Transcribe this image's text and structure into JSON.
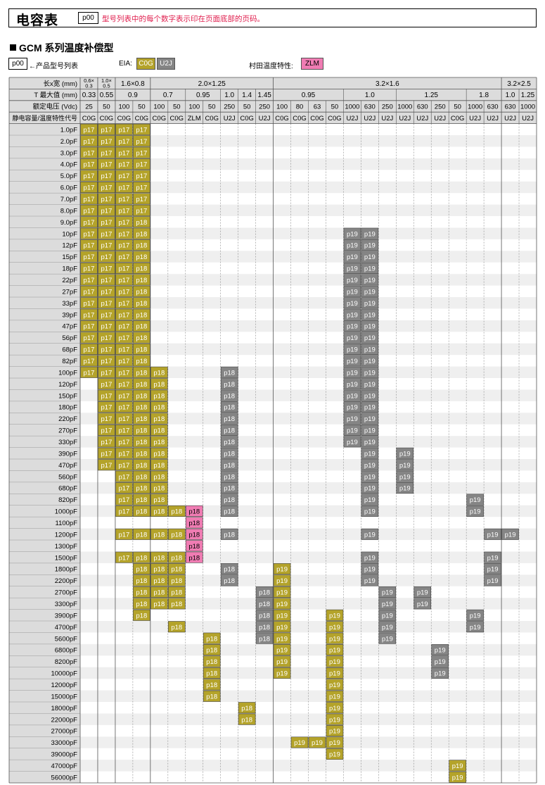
{
  "header": {
    "title": "电容表",
    "page_ref": "p00",
    "note": "型号列表中的每个数字表示印在页面底部的页码。"
  },
  "series_title": "GCM 系列温度补偿型",
  "legend": {
    "page_box": "p00",
    "page_desc": "←产品型号列表",
    "eia_label": "EIA:",
    "eia_codes": [
      "C0G",
      "U2J"
    ],
    "murata_label": "村田温度特性:",
    "murata_code": "ZLM"
  },
  "colors": {
    "C0G": "#b4a32a",
    "U2J": "#858585",
    "ZLM": "#f07cb3"
  },
  "table": {
    "row_headers": [
      "长x宽 (mm)",
      "T 最大值 (mm)",
      "额定电压 (Vdc)",
      "静电容量/温度特性代号"
    ],
    "sizes": [
      {
        "label": "0.6×0.3",
        "span": 1
      },
      {
        "label": "1.0×0.5",
        "span": 1
      },
      {
        "label": "1.6×0.8",
        "span": 2
      },
      {
        "label": "2.0×1.25",
        "span": 7
      },
      {
        "label": "3.2×1.6",
        "span": 13
      },
      {
        "label": "3.2×2.5",
        "span": 2
      }
    ],
    "thickness": [
      {
        "label": "0.33",
        "span": 1
      },
      {
        "label": "0.55",
        "span": 1
      },
      {
        "label": "0.9",
        "span": 2
      },
      {
        "label": "0.7",
        "span": 2
      },
      {
        "label": "0.95",
        "span": 2
      },
      {
        "label": "1.0",
        "span": 1
      },
      {
        "label": "1.4",
        "span": 1
      },
      {
        "label": "1.45",
        "span": 1
      },
      {
        "label": "0.95",
        "span": 4
      },
      {
        "label": "1.0",
        "span": 3
      },
      {
        "label": "1.25",
        "span": 4
      },
      {
        "label": "1.8",
        "span": 2
      },
      {
        "label": "1.0",
        "span": 1
      },
      {
        "label": "1.25",
        "span": 1
      }
    ],
    "voltages": [
      "25",
      "50",
      "100",
      "50",
      "100",
      "50",
      "100",
      "50",
      "250",
      "50",
      "250",
      "100",
      "80",
      "63",
      "50",
      "1000",
      "630",
      "250",
      "1000",
      "630",
      "250",
      "50",
      "1000",
      "630",
      "630",
      "1000"
    ],
    "tc": [
      "C0G",
      "C0G",
      "C0G",
      "C0G",
      "C0G",
      "C0G",
      "ZLM",
      "C0G",
      "U2J",
      "C0G",
      "U2J",
      "C0G",
      "C0G",
      "C0G",
      "C0G",
      "U2J",
      "U2J",
      "U2J",
      "U2J",
      "U2J",
      "U2J",
      "C0G",
      "U2J",
      "U2J",
      "U2J",
      "U2J"
    ],
    "capacitances": [
      "1.0pF",
      "2.0pF",
      "3.0pF",
      "4.0pF",
      "5.0pF",
      "6.0pF",
      "7.0pF",
      "8.0pF",
      "9.0pF",
      "10pF",
      "12pF",
      "15pF",
      "18pF",
      "22pF",
      "27pF",
      "33pF",
      "39pF",
      "47pF",
      "56pF",
      "68pF",
      "82pF",
      "100pF",
      "120pF",
      "150pF",
      "180pF",
      "220pF",
      "270pF",
      "330pF",
      "390pF",
      "470pF",
      "560pF",
      "680pF",
      "820pF",
      "1000pF",
      "1100pF",
      "1200pF",
      "1300pF",
      "1500pF",
      "1800pF",
      "2200pF",
      "2700pF",
      "3300pF",
      "3900pF",
      "4700pF",
      "5600pF",
      "6800pF",
      "8200pF",
      "10000pF",
      "12000pF",
      "15000pF",
      "18000pF",
      "22000pF",
      "27000pF",
      "33000pF",
      "39000pF",
      "47000pF",
      "56000pF"
    ],
    "cells": [
      [
        0,
        0,
        "p17"
      ],
      [
        1,
        0,
        "p17"
      ],
      [
        2,
        0,
        "p17"
      ],
      [
        3,
        0,
        "p17"
      ],
      [
        4,
        0,
        "p17"
      ],
      [
        5,
        0,
        "p17"
      ],
      [
        6,
        0,
        "p17"
      ],
      [
        7,
        0,
        "p17"
      ],
      [
        8,
        0,
        "p17"
      ],
      [
        9,
        0,
        "p17"
      ],
      [
        10,
        0,
        "p17"
      ],
      [
        11,
        0,
        "p17"
      ],
      [
        12,
        0,
        "p17"
      ],
      [
        13,
        0,
        "p17"
      ],
      [
        14,
        0,
        "p17"
      ],
      [
        15,
        0,
        "p17"
      ],
      [
        16,
        0,
        "p17"
      ],
      [
        17,
        0,
        "p17"
      ],
      [
        18,
        0,
        "p17"
      ],
      [
        19,
        0,
        "p17"
      ],
      [
        20,
        0,
        "p17"
      ],
      [
        21,
        0,
        "p17"
      ],
      [
        0,
        1,
        "p17"
      ],
      [
        1,
        1,
        "p17"
      ],
      [
        2,
        1,
        "p17"
      ],
      [
        3,
        1,
        "p17"
      ],
      [
        4,
        1,
        "p17"
      ],
      [
        5,
        1,
        "p17"
      ],
      [
        6,
        1,
        "p17"
      ],
      [
        7,
        1,
        "p17"
      ],
      [
        8,
        1,
        "p17"
      ],
      [
        9,
        1,
        "p17"
      ],
      [
        10,
        1,
        "p17"
      ],
      [
        11,
        1,
        "p17"
      ],
      [
        12,
        1,
        "p17"
      ],
      [
        13,
        1,
        "p17"
      ],
      [
        14,
        1,
        "p17"
      ],
      [
        15,
        1,
        "p17"
      ],
      [
        16,
        1,
        "p17"
      ],
      [
        17,
        1,
        "p17"
      ],
      [
        18,
        1,
        "p17"
      ],
      [
        19,
        1,
        "p17"
      ],
      [
        20,
        1,
        "p17"
      ],
      [
        21,
        1,
        "p17"
      ],
      [
        22,
        1,
        "p17"
      ],
      [
        23,
        1,
        "p17"
      ],
      [
        24,
        1,
        "p17"
      ],
      [
        25,
        1,
        "p17"
      ],
      [
        26,
        1,
        "p17"
      ],
      [
        27,
        1,
        "p17"
      ],
      [
        28,
        1,
        "p17"
      ],
      [
        29,
        1,
        "p17"
      ],
      [
        0,
        2,
        "p17"
      ],
      [
        1,
        2,
        "p17"
      ],
      [
        2,
        2,
        "p17"
      ],
      [
        3,
        2,
        "p17"
      ],
      [
        4,
        2,
        "p17"
      ],
      [
        5,
        2,
        "p17"
      ],
      [
        6,
        2,
        "p17"
      ],
      [
        7,
        2,
        "p17"
      ],
      [
        8,
        2,
        "p17"
      ],
      [
        9,
        2,
        "p17"
      ],
      [
        10,
        2,
        "p17"
      ],
      [
        11,
        2,
        "p17"
      ],
      [
        12,
        2,
        "p17"
      ],
      [
        13,
        2,
        "p17"
      ],
      [
        14,
        2,
        "p17"
      ],
      [
        15,
        2,
        "p17"
      ],
      [
        16,
        2,
        "p17"
      ],
      [
        17,
        2,
        "p17"
      ],
      [
        18,
        2,
        "p17"
      ],
      [
        19,
        2,
        "p17"
      ],
      [
        20,
        2,
        "p17"
      ],
      [
        21,
        2,
        "p17"
      ],
      [
        22,
        2,
        "p17"
      ],
      [
        23,
        2,
        "p17"
      ],
      [
        24,
        2,
        "p17"
      ],
      [
        25,
        2,
        "p17"
      ],
      [
        26,
        2,
        "p17"
      ],
      [
        27,
        2,
        "p17"
      ],
      [
        28,
        2,
        "p17"
      ],
      [
        29,
        2,
        "p17"
      ],
      [
        30,
        2,
        "p17"
      ],
      [
        31,
        2,
        "p17"
      ],
      [
        32,
        2,
        "p17"
      ],
      [
        33,
        2,
        "p17"
      ],
      [
        35,
        2,
        "p17"
      ],
      [
        37,
        2,
        "p17"
      ],
      [
        0,
        3,
        "p17"
      ],
      [
        1,
        3,
        "p17"
      ],
      [
        2,
        3,
        "p17"
      ],
      [
        3,
        3,
        "p17"
      ],
      [
        4,
        3,
        "p17"
      ],
      [
        5,
        3,
        "p17"
      ],
      [
        6,
        3,
        "p17"
      ],
      [
        7,
        3,
        "p17"
      ],
      [
        8,
        3,
        "p18"
      ],
      [
        9,
        3,
        "p18"
      ],
      [
        10,
        3,
        "p18"
      ],
      [
        11,
        3,
        "p18"
      ],
      [
        12,
        3,
        "p18"
      ],
      [
        13,
        3,
        "p18"
      ],
      [
        14,
        3,
        "p18"
      ],
      [
        15,
        3,
        "p18"
      ],
      [
        16,
        3,
        "p18"
      ],
      [
        17,
        3,
        "p18"
      ],
      [
        18,
        3,
        "p18"
      ],
      [
        19,
        3,
        "p18"
      ],
      [
        20,
        3,
        "p18"
      ],
      [
        21,
        3,
        "p18"
      ],
      [
        22,
        3,
        "p18"
      ],
      [
        23,
        3,
        "p18"
      ],
      [
        24,
        3,
        "p18"
      ],
      [
        25,
        3,
        "p18"
      ],
      [
        26,
        3,
        "p18"
      ],
      [
        27,
        3,
        "p18"
      ],
      [
        28,
        3,
        "p18"
      ],
      [
        29,
        3,
        "p18"
      ],
      [
        30,
        3,
        "p18"
      ],
      [
        31,
        3,
        "p18"
      ],
      [
        32,
        3,
        "p18"
      ],
      [
        33,
        3,
        "p18"
      ],
      [
        35,
        3,
        "p18"
      ],
      [
        37,
        3,
        "p18"
      ],
      [
        38,
        3,
        "p18"
      ],
      [
        39,
        3,
        "p18"
      ],
      [
        40,
        3,
        "p18"
      ],
      [
        41,
        3,
        "p18"
      ],
      [
        42,
        3,
        "p18"
      ],
      [
        21,
        4,
        "p18"
      ],
      [
        22,
        4,
        "p18"
      ],
      [
        23,
        4,
        "p18"
      ],
      [
        24,
        4,
        "p18"
      ],
      [
        25,
        4,
        "p18"
      ],
      [
        26,
        4,
        "p18"
      ],
      [
        27,
        4,
        "p18"
      ],
      [
        28,
        4,
        "p18"
      ],
      [
        29,
        4,
        "p18"
      ],
      [
        30,
        4,
        "p18"
      ],
      [
        31,
        4,
        "p18"
      ],
      [
        32,
        4,
        "p18"
      ],
      [
        33,
        4,
        "p18"
      ],
      [
        35,
        4,
        "p18"
      ],
      [
        37,
        4,
        "p18"
      ],
      [
        38,
        4,
        "p18"
      ],
      [
        39,
        4,
        "p18"
      ],
      [
        40,
        4,
        "p18"
      ],
      [
        41,
        4,
        "p18"
      ],
      [
        33,
        5,
        "p18"
      ],
      [
        35,
        5,
        "p18"
      ],
      [
        37,
        5,
        "p18"
      ],
      [
        38,
        5,
        "p18"
      ],
      [
        39,
        5,
        "p18"
      ],
      [
        40,
        5,
        "p18"
      ],
      [
        41,
        5,
        "p18"
      ],
      [
        43,
        5,
        "p18"
      ],
      [
        33,
        6,
        "p18"
      ],
      [
        34,
        6,
        "p18"
      ],
      [
        35,
        6,
        "p18"
      ],
      [
        36,
        6,
        "p18"
      ],
      [
        37,
        6,
        "p18"
      ],
      [
        44,
        7,
        "p18"
      ],
      [
        45,
        7,
        "p18"
      ],
      [
        46,
        7,
        "p18"
      ],
      [
        47,
        7,
        "p18"
      ],
      [
        48,
        7,
        "p18"
      ],
      [
        49,
        7,
        "p18"
      ],
      [
        21,
        8,
        "p18"
      ],
      [
        22,
        8,
        "p18"
      ],
      [
        23,
        8,
        "p18"
      ],
      [
        24,
        8,
        "p18"
      ],
      [
        25,
        8,
        "p18"
      ],
      [
        26,
        8,
        "p18"
      ],
      [
        27,
        8,
        "p18"
      ],
      [
        28,
        8,
        "p18"
      ],
      [
        29,
        8,
        "p18"
      ],
      [
        30,
        8,
        "p18"
      ],
      [
        31,
        8,
        "p18"
      ],
      [
        32,
        8,
        "p18"
      ],
      [
        33,
        8,
        "p18"
      ],
      [
        35,
        8,
        "p18"
      ],
      [
        38,
        8,
        "p18"
      ],
      [
        39,
        8,
        "p18"
      ],
      [
        50,
        9,
        "p18"
      ],
      [
        51,
        9,
        "p18"
      ],
      [
        40,
        10,
        "p18"
      ],
      [
        41,
        10,
        "p18"
      ],
      [
        42,
        10,
        "p18"
      ],
      [
        43,
        10,
        "p18"
      ],
      [
        44,
        10,
        "p18"
      ],
      [
        38,
        11,
        "p19"
      ],
      [
        39,
        11,
        "p19"
      ],
      [
        40,
        11,
        "p19"
      ],
      [
        41,
        11,
        "p19"
      ],
      [
        42,
        11,
        "p19"
      ],
      [
        43,
        11,
        "p19"
      ],
      [
        44,
        11,
        "p19"
      ],
      [
        45,
        11,
        "p19"
      ],
      [
        46,
        11,
        "p19"
      ],
      [
        47,
        11,
        "p19"
      ],
      [
        53,
        12,
        "p19"
      ],
      [
        53,
        13,
        "p19"
      ],
      [
        42,
        14,
        "p19"
      ],
      [
        43,
        14,
        "p19"
      ],
      [
        44,
        14,
        "p19"
      ],
      [
        45,
        14,
        "p19"
      ],
      [
        46,
        14,
        "p19"
      ],
      [
        47,
        14,
        "p19"
      ],
      [
        48,
        14,
        "p19"
      ],
      [
        49,
        14,
        "p19"
      ],
      [
        50,
        14,
        "p19"
      ],
      [
        51,
        14,
        "p19"
      ],
      [
        52,
        14,
        "p19"
      ],
      [
        53,
        14,
        "p19"
      ],
      [
        54,
        14,
        "p19"
      ],
      [
        9,
        15,
        "p19"
      ],
      [
        10,
        15,
        "p19"
      ],
      [
        11,
        15,
        "p19"
      ],
      [
        12,
        15,
        "p19"
      ],
      [
        13,
        15,
        "p19"
      ],
      [
        14,
        15,
        "p19"
      ],
      [
        15,
        15,
        "p19"
      ],
      [
        16,
        15,
        "p19"
      ],
      [
        17,
        15,
        "p19"
      ],
      [
        18,
        15,
        "p19"
      ],
      [
        19,
        15,
        "p19"
      ],
      [
        20,
        15,
        "p19"
      ],
      [
        21,
        15,
        "p19"
      ],
      [
        22,
        15,
        "p19"
      ],
      [
        23,
        15,
        "p19"
      ],
      [
        24,
        15,
        "p19"
      ],
      [
        25,
        15,
        "p19"
      ],
      [
        26,
        15,
        "p19"
      ],
      [
        27,
        15,
        "p19"
      ],
      [
        9,
        16,
        "p19"
      ],
      [
        10,
        16,
        "p19"
      ],
      [
        11,
        16,
        "p19"
      ],
      [
        12,
        16,
        "p19"
      ],
      [
        13,
        16,
        "p19"
      ],
      [
        14,
        16,
        "p19"
      ],
      [
        15,
        16,
        "p19"
      ],
      [
        16,
        16,
        "p19"
      ],
      [
        17,
        16,
        "p19"
      ],
      [
        18,
        16,
        "p19"
      ],
      [
        19,
        16,
        "p19"
      ],
      [
        20,
        16,
        "p19"
      ],
      [
        21,
        16,
        "p19"
      ],
      [
        22,
        16,
        "p19"
      ],
      [
        23,
        16,
        "p19"
      ],
      [
        24,
        16,
        "p19"
      ],
      [
        25,
        16,
        "p19"
      ],
      [
        26,
        16,
        "p19"
      ],
      [
        27,
        16,
        "p19"
      ],
      [
        28,
        16,
        "p19"
      ],
      [
        29,
        16,
        "p19"
      ],
      [
        30,
        16,
        "p19"
      ],
      [
        31,
        16,
        "p19"
      ],
      [
        32,
        16,
        "p19"
      ],
      [
        33,
        16,
        "p19"
      ],
      [
        35,
        16,
        "p19"
      ],
      [
        37,
        16,
        "p19"
      ],
      [
        38,
        16,
        "p19"
      ],
      [
        39,
        16,
        "p19"
      ],
      [
        40,
        17,
        "p19"
      ],
      [
        41,
        17,
        "p19"
      ],
      [
        42,
        17,
        "p19"
      ],
      [
        43,
        17,
        "p19"
      ],
      [
        44,
        17,
        "p19"
      ],
      [
        28,
        18,
        "p19"
      ],
      [
        29,
        18,
        "p19"
      ],
      [
        30,
        18,
        "p19"
      ],
      [
        31,
        18,
        "p19"
      ],
      [
        40,
        19,
        "p19"
      ],
      [
        41,
        19,
        "p19"
      ],
      [
        45,
        20,
        "p19"
      ],
      [
        46,
        20,
        "p19"
      ],
      [
        47,
        20,
        "p19"
      ],
      [
        55,
        21,
        "p19"
      ],
      [
        56,
        21,
        "p19"
      ],
      [
        32,
        22,
        "p19"
      ],
      [
        33,
        22,
        "p19"
      ],
      [
        42,
        22,
        "p19"
      ],
      [
        43,
        22,
        "p19"
      ],
      [
        35,
        23,
        "p19"
      ],
      [
        37,
        23,
        "p19"
      ],
      [
        38,
        23,
        "p19"
      ],
      [
        39,
        23,
        "p19"
      ],
      [
        35,
        24,
        "p19"
      ]
    ]
  }
}
